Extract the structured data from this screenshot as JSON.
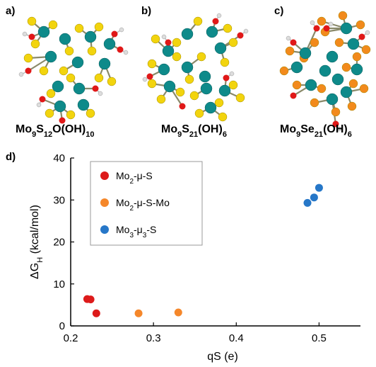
{
  "panels": {
    "a": {
      "letter": "a)",
      "formula": [
        [
          "Mo",
          ""
        ],
        [
          "9",
          "sub"
        ],
        [
          "S",
          ""
        ],
        [
          "12",
          "sub"
        ],
        [
          "O(OH)",
          ""
        ],
        [
          "10",
          "sub"
        ]
      ]
    },
    "b": {
      "letter": "b)",
      "formula": [
        [
          "Mo",
          ""
        ],
        [
          "9",
          "sub"
        ],
        [
          "S",
          ""
        ],
        [
          "21",
          "sub"
        ],
        [
          "(OH)",
          ""
        ],
        [
          "6",
          "sub"
        ]
      ]
    },
    "c": {
      "letter": "c)",
      "formula": [
        [
          "Mo",
          ""
        ],
        [
          "9",
          "sub"
        ],
        [
          "Se",
          ""
        ],
        [
          "21",
          "sub"
        ],
        [
          "(OH)",
          ""
        ],
        [
          "6",
          "sub"
        ]
      ]
    },
    "d": {
      "letter": "d)"
    }
  },
  "atom_colors": {
    "mo": "#0e8a8a",
    "s": "#f2d40e",
    "se": "#f28a1c",
    "o": "#e01818",
    "h": "#dddddd"
  },
  "chart_data": {
    "type": "scatter",
    "xlabel": "qS (e)",
    "ylabel_parts": [
      [
        "ΔG",
        ""
      ],
      [
        "H",
        "sub"
      ],
      [
        " (kcal/mol)",
        ""
      ]
    ],
    "xlim": [
      0.2,
      0.55
    ],
    "ylim": [
      0,
      40
    ],
    "xticks": [
      0.2,
      0.3,
      0.4,
      0.5
    ],
    "yticks": [
      0,
      10,
      20,
      30,
      40
    ],
    "grid": false,
    "legend_position": "top-left",
    "series": [
      {
        "name_parts": [
          [
            "Mo",
            ""
          ],
          [
            "2",
            "sub"
          ],
          [
            "-μ-S",
            ""
          ]
        ],
        "color": "#dd1a1a",
        "points": [
          [
            0.22,
            6.4
          ],
          [
            0.224,
            6.3
          ],
          [
            0.231,
            3.0
          ]
        ]
      },
      {
        "name_parts": [
          [
            "Mo",
            ""
          ],
          [
            "2",
            "sub"
          ],
          [
            "-μ-S-Mo",
            ""
          ]
        ],
        "color": "#f5872a",
        "points": [
          [
            0.282,
            3.0
          ],
          [
            0.33,
            3.2
          ]
        ]
      },
      {
        "name_parts": [
          [
            "Mo",
            ""
          ],
          [
            "3",
            "sub"
          ],
          [
            "-μ",
            ""
          ],
          [
            "3",
            "sub"
          ],
          [
            "-S",
            ""
          ]
        ],
        "color": "#2677c8",
        "points": [
          [
            0.486,
            29.3
          ],
          [
            0.494,
            30.6
          ],
          [
            0.5,
            32.9
          ]
        ]
      }
    ]
  }
}
